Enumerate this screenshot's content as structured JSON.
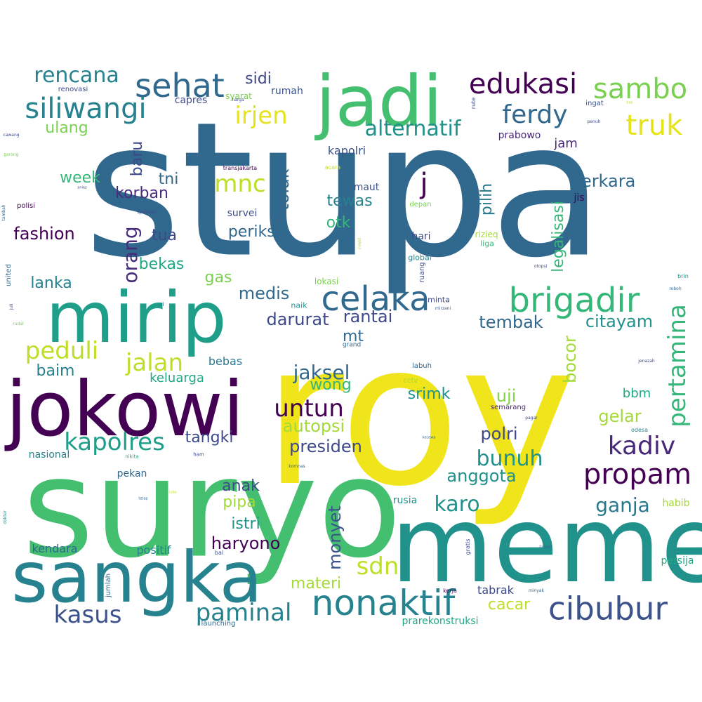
{
  "words": [
    {
      "text": "stupa",
      "color": "#31688e"
    },
    {
      "text": "roy",
      "color": "#f0e51b"
    },
    {
      "text": "suryo",
      "color": "#44bf70"
    },
    {
      "text": "meme",
      "color": "#21918c"
    },
    {
      "text": "jokowi",
      "color": "#440154"
    },
    {
      "text": "mirip",
      "color": "#1f9e89"
    },
    {
      "text": "sangka",
      "color": "#26828e"
    },
    {
      "text": "jadi",
      "color": "#44bf70"
    },
    {
      "text": "nonaktif",
      "color": "#26828e"
    },
    {
      "text": "cibubur",
      "color": "#3b528b"
    },
    {
      "text": "celaka",
      "color": "#31688e"
    },
    {
      "text": "brigadir",
      "color": "#35b779"
    },
    {
      "text": "propam",
      "color": "#440154"
    },
    {
      "text": "kadiv",
      "color": "#482878"
    },
    {
      "text": "sehat",
      "color": "#31688e"
    },
    {
      "text": "siliwangi",
      "color": "#26828e"
    },
    {
      "text": "edukasi",
      "color": "#440154"
    },
    {
      "text": "sambo",
      "color": "#7ad151"
    },
    {
      "text": "truk",
      "color": "#e5e419"
    },
    {
      "text": "ferdy",
      "color": "#31688e"
    },
    {
      "text": "pertamina",
      "color": "#35b779"
    },
    {
      "text": "kapolres",
      "color": "#1f9e89"
    },
    {
      "text": "untun",
      "color": "#440154"
    },
    {
      "text": "peduli",
      "color": "#bddf26"
    },
    {
      "text": "jalan",
      "color": "#bddf26"
    },
    {
      "text": "kasus",
      "color": "#3b528b"
    },
    {
      "text": "sdn",
      "color": "#bddf26"
    },
    {
      "text": "paminal",
      "color": "#26828e"
    },
    {
      "text": "irjen",
      "color": "#e5e419"
    },
    {
      "text": "mnc",
      "color": "#bddf26"
    },
    {
      "text": "rencana",
      "color": "#26828e"
    },
    {
      "text": "alternatif",
      "color": "#21918c"
    },
    {
      "text": "karo",
      "color": "#21918c"
    },
    {
      "text": "bunuh",
      "color": "#21918c"
    },
    {
      "text": "j",
      "color": "#440154"
    },
    {
      "text": "jaksel",
      "color": "#31688e"
    },
    {
      "text": "ganja",
      "color": "#2a788e"
    },
    {
      "text": "orang",
      "color": "#472d7b"
    },
    {
      "text": "haryono",
      "color": "#440154"
    },
    {
      "text": "monyet",
      "color": "#3b528b"
    },
    {
      "text": "autopsi",
      "color": "#a2da37"
    },
    {
      "text": "presiden",
      "color": "#3e4989"
    },
    {
      "text": "medis",
      "color": "#31688e"
    },
    {
      "text": "fashion",
      "color": "#440154"
    },
    {
      "text": "tolak",
      "color": "#31688e"
    },
    {
      "text": "darurat",
      "color": "#3e4989"
    },
    {
      "text": "rantai",
      "color": "#3e4989"
    },
    {
      "text": "anggota",
      "color": "#21918c"
    },
    {
      "text": "citayam",
      "color": "#21918c"
    },
    {
      "text": "polri",
      "color": "#3e4989"
    },
    {
      "text": "uji",
      "color": "#86d549"
    },
    {
      "text": "gelar",
      "color": "#a2da37"
    },
    {
      "text": "perkara",
      "color": "#31688e"
    },
    {
      "text": "tembak",
      "color": "#31688e"
    },
    {
      "text": "bocor",
      "color": "#a2da37"
    },
    {
      "text": "legalisasi",
      "color": "#35b779"
    },
    {
      "text": "pilih",
      "color": "#2a788e"
    },
    {
      "text": "tewas",
      "color": "#26828e"
    },
    {
      "text": "otk",
      "color": "#35b779"
    },
    {
      "text": "periksa",
      "color": "#31688e"
    },
    {
      "text": "korban",
      "color": "#472d7b"
    },
    {
      "text": "week",
      "color": "#35b779"
    },
    {
      "text": "tni",
      "color": "#31688e"
    },
    {
      "text": "baru",
      "color": "#3e4989"
    },
    {
      "text": "tua",
      "color": "#3e4989"
    },
    {
      "text": "ulang",
      "color": "#7ad151"
    },
    {
      "text": "sidi",
      "color": "#3e4989"
    },
    {
      "text": "mt",
      "color": "#31688e"
    },
    {
      "text": "srimk",
      "color": "#21918c"
    },
    {
      "text": "wong",
      "color": "#35b779"
    },
    {
      "text": "tangki",
      "color": "#3e4989"
    },
    {
      "text": "lanka",
      "color": "#26828e"
    },
    {
      "text": "bekas",
      "color": "#22a884"
    },
    {
      "text": "gas",
      "color": "#7ad151"
    },
    {
      "text": "baim",
      "color": "#26828e"
    },
    {
      "text": "keluarga",
      "color": "#22a884"
    },
    {
      "text": "bebas",
      "color": "#2a788e"
    },
    {
      "text": "anak",
      "color": "#3e4989"
    },
    {
      "text": "pipa",
      "color": "#a2da37"
    },
    {
      "text": "istri",
      "color": "#21918c"
    },
    {
      "text": "materi",
      "color": "#a2da37"
    },
    {
      "text": "cacar",
      "color": "#bddf26"
    },
    {
      "text": "tabrak",
      "color": "#3e4989"
    },
    {
      "text": "positif",
      "color": "#26828e"
    },
    {
      "text": "kendara",
      "color": "#31688e"
    },
    {
      "text": "pekan",
      "color": "#31688e"
    },
    {
      "text": "nasional",
      "color": "#26828e"
    },
    {
      "text": "habib",
      "color": "#a2da37"
    },
    {
      "text": "persija",
      "color": "#22a884"
    },
    {
      "text": "rusia",
      "color": "#21918c"
    },
    {
      "text": "prarekonstruksi",
      "color": "#22a884"
    },
    {
      "text": "bbm",
      "color": "#22a884"
    },
    {
      "text": "jam",
      "color": "#482878"
    },
    {
      "text": "kapolri",
      "color": "#3b528b"
    },
    {
      "text": "prabowo",
      "color": "#482878"
    },
    {
      "text": "jis",
      "color": "#440154"
    },
    {
      "text": "maut",
      "color": "#3b528b"
    },
    {
      "text": "survei",
      "color": "#3e4989"
    },
    {
      "text": "rumah",
      "color": "#3b528b"
    },
    {
      "text": "capres",
      "color": "#3e4989"
    },
    {
      "text": "syarat",
      "color": "#7ad151"
    },
    {
      "text": "renovasi",
      "color": "#3e4989"
    },
    {
      "text": "ingat",
      "color": "#3b528b"
    },
    {
      "text": "lokasi",
      "color": "#7ad151"
    },
    {
      "text": "naik",
      "color": "#21918c"
    },
    {
      "text": "minta",
      "color": "#3e4989"
    },
    {
      "text": "hari",
      "color": "#3e4989"
    },
    {
      "text": "global",
      "color": "#26828e"
    },
    {
      "text": "liga",
      "color": "#35b779"
    },
    {
      "text": "rizieq",
      "color": "#a2da37"
    },
    {
      "text": "depan",
      "color": "#7ad151"
    },
    {
      "text": "ruang",
      "color": "#3e4989"
    },
    {
      "text": "united",
      "color": "#31688e"
    },
    {
      "text": "polisi",
      "color": "#440154"
    },
    {
      "text": "labuh",
      "color": "#31688e"
    },
    {
      "text": "cctv",
      "color": "#a2da37"
    },
    {
      "text": "semarang",
      "color": "#482878"
    },
    {
      "text": "grand",
      "color": "#31688e"
    },
    {
      "text": "transjakarta",
      "color": "#440154"
    },
    {
      "text": "acara",
      "color": "#c8e020"
    },
    {
      "text": "jumlah",
      "color": "#31688e"
    },
    {
      "text": "gratis",
      "color": "#3e4989"
    },
    {
      "text": "launching",
      "color": "#31688e"
    },
    {
      "text": "bal",
      "color": "#3b528b"
    },
    {
      "text": "komnas",
      "color": "#31688e"
    },
    {
      "text": "kerja",
      "color": "#440154"
    },
    {
      "text": "minyak",
      "color": "#31688e"
    },
    {
      "text": "mirzani",
      "color": "#3b528b"
    },
    {
      "text": "jenazah",
      "color": "#3e4989"
    },
    {
      "text": "odesa",
      "color": "#26828e"
    },
    {
      "text": "otopsi",
      "color": "#3e4989"
    },
    {
      "text": "brin",
      "color": "#21918c"
    },
    {
      "text": "roboh",
      "color": "#31688e"
    },
    {
      "text": "ham",
      "color": "#3e4989"
    },
    {
      "text": "nikita",
      "color": "#22a884"
    },
    {
      "text": "penuh",
      "color": "#3e4989"
    },
    {
      "text": "rute",
      "color": "#3b528b"
    },
    {
      "text": "dokter",
      "color": "#21918c"
    },
    {
      "text": "ri",
      "color": "#31688e"
    },
    {
      "text": "rudal",
      "color": "#7ad151"
    },
    {
      "text": "juli",
      "color": "#3e4989"
    },
    {
      "text": "spekulasi",
      "color": "#3e4989"
    },
    {
      "text": "tambah",
      "color": "#31688e"
    },
    {
      "text": "gorong",
      "color": "#7ad151"
    },
    {
      "text": "cawang",
      "color": "#3e4989"
    },
    {
      "text": "anies",
      "color": "#3e4989"
    },
    {
      "text": "bo",
      "color": "#31688e"
    },
    {
      "text": "covid",
      "color": "#a2da37"
    },
    {
      "text": "pagar",
      "color": "#3e4989"
    },
    {
      "text": "kecewa",
      "color": "#31688e"
    },
    {
      "text": "harga",
      "color": "#3e4989"
    },
    {
      "text": "tetap",
      "color": "#31688e"
    },
    {
      "text": "tinggal",
      "color": "#31688e"
    },
    {
      "text": "hak",
      "color": "#c8e020"
    },
    {
      "text": "rubo",
      "color": "#c8e020"
    }
  ]
}
